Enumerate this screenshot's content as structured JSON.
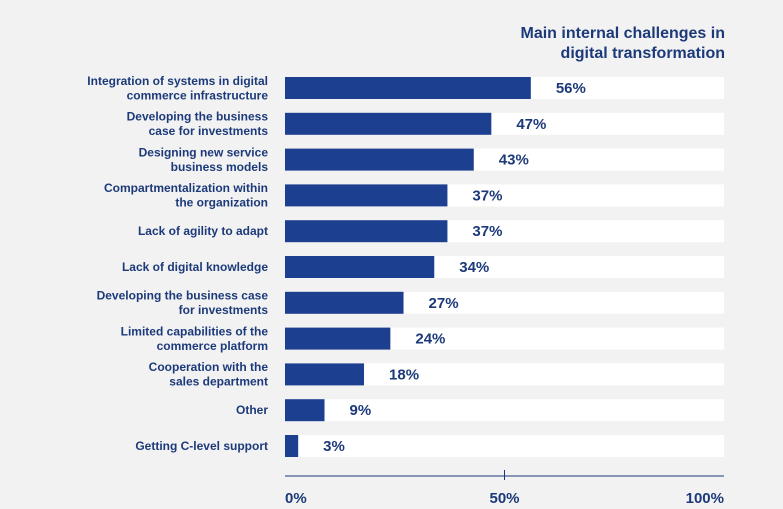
{
  "chart_data": {
    "type": "bar",
    "orientation": "horizontal",
    "title_lines": [
      "Main internal  challenges in",
      "digital transformation"
    ],
    "categories": [
      [
        "Integration of systems in digital",
        "commerce infrastructure"
      ],
      [
        "Developing the business",
        "case for investments"
      ],
      [
        "Designing new service",
        "business models"
      ],
      [
        "Compartmentalization within",
        "the organization"
      ],
      [
        "Lack of agility to adapt"
      ],
      [
        "Lack of digital knowledge"
      ],
      [
        "Developing the business case",
        "for investments"
      ],
      [
        "Limited capabilities of the",
        "commerce platform"
      ],
      [
        "Cooperation with the",
        "sales department"
      ],
      [
        "Other"
      ],
      [
        "Getting C-level support"
      ]
    ],
    "values": [
      56,
      47,
      43,
      37,
      37,
      34,
      27,
      24,
      18,
      9,
      3
    ],
    "value_labels": [
      "56%",
      "47%",
      "43%",
      "37%",
      "37%",
      "34%",
      "27%",
      "24%",
      "18%",
      "9%",
      "3%"
    ],
    "xlim": [
      0,
      100
    ],
    "x_ticks": [
      0,
      50,
      100
    ],
    "x_tick_labels": [
      "0%",
      "50%",
      "100%"
    ],
    "colors": {
      "bar": "#1c3f8f",
      "track": "#ffffff",
      "text": "#1c3a7a",
      "axis": "#1c3a7a"
    }
  }
}
